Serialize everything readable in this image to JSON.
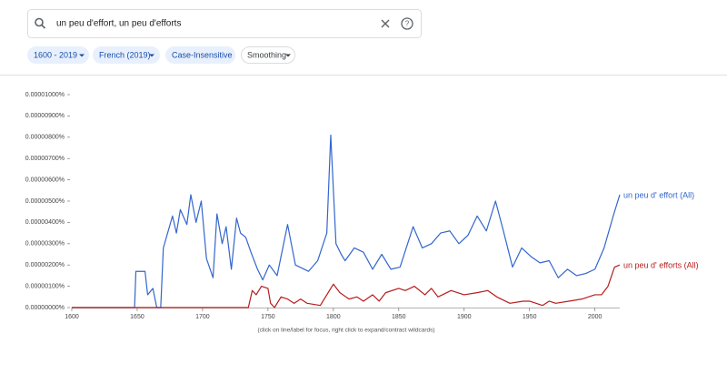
{
  "search": {
    "query": "un peu d'effort, un peu d'efforts"
  },
  "filters": [
    "1600 - 2019",
    "French (2019)",
    "Case-Insensitive",
    "Smoothing"
  ],
  "chart_data": {
    "type": "line",
    "note": "(click on line/label for focus, right click to expand/contract wildcards)",
    "xlim": [
      1600,
      2019
    ],
    "xticks": [
      1600,
      1650,
      1700,
      1750,
      1800,
      1850,
      1900,
      1950,
      2000
    ],
    "ylim": [
      0,
      1e-05
    ],
    "yticks": [
      {
        "value": 0,
        "label": "0.00000000%"
      },
      {
        "value": 1e-06,
        "label": "0.00000100%"
      },
      {
        "value": 2e-06,
        "label": "0.00000200%"
      },
      {
        "value": 3e-06,
        "label": "0.00000300%"
      },
      {
        "value": 4e-06,
        "label": "0.00000400%"
      },
      {
        "value": 5e-06,
        "label": "0.00000500%"
      },
      {
        "value": 6e-06,
        "label": "0.00000600%"
      },
      {
        "value": 7e-06,
        "label": "0.00000700%"
      },
      {
        "value": 8e-06,
        "label": "0.00000800%"
      },
      {
        "value": 9e-06,
        "label": "0.00000900%"
      },
      {
        "value": 1e-05,
        "label": "0.00001000%"
      }
    ],
    "series": [
      {
        "name": "un peu d' effort (All)",
        "color": "#3366cc",
        "x": [
          1600,
          1648,
          1649,
          1656,
          1658,
          1662,
          1665,
          1668,
          1670,
          1677,
          1680,
          1683,
          1688,
          1691,
          1695,
          1699,
          1703,
          1708,
          1711,
          1715,
          1718,
          1722,
          1726,
          1729,
          1733,
          1737,
          1742,
          1746,
          1751,
          1757,
          1762,
          1765,
          1771,
          1781,
          1788,
          1795,
          1798,
          1802,
          1806,
          1809,
          1816,
          1823,
          1830,
          1837,
          1844,
          1851,
          1861,
          1868,
          1875,
          1882,
          1889,
          1896,
          1903,
          1910,
          1917,
          1924,
          1930,
          1937,
          1944,
          1951,
          1958,
          1965,
          1972,
          1979,
          1986,
          1993,
          2000,
          2007,
          2014,
          2019
        ],
        "values": [
          0,
          0,
          1.7e-06,
          1.7e-06,
          6e-07,
          9e-07,
          0,
          0,
          2.8e-06,
          4.3e-06,
          3.5e-06,
          4.6e-06,
          3.9e-06,
          5.3e-06,
          4e-06,
          5e-06,
          2.3e-06,
          1.4e-06,
          4.4e-06,
          3e-06,
          3.8e-06,
          1.8e-06,
          4.2e-06,
          3.5e-06,
          3.3e-06,
          2.6e-06,
          1.8e-06,
          1.3e-06,
          2e-06,
          1.5e-06,
          3e-06,
          3.9e-06,
          2e-06,
          1.7e-06,
          2.2e-06,
          3.5e-06,
          8.1e-06,
          3e-06,
          2.5e-06,
          2.2e-06,
          2.8e-06,
          2.6e-06,
          1.8e-06,
          2.5e-06,
          1.8e-06,
          1.9e-06,
          3.8e-06,
          2.8e-06,
          3e-06,
          3.5e-06,
          3.6e-06,
          3e-06,
          3.4e-06,
          4.3e-06,
          3.6e-06,
          5e-06,
          3.6e-06,
          1.9e-06,
          2.8e-06,
          2.4e-06,
          2.1e-06,
          2.2e-06,
          1.4e-06,
          1.8e-06,
          1.5e-06,
          1.6e-06,
          1.8e-06,
          2.8e-06,
          4.3e-06,
          5.3e-06
        ]
      },
      {
        "name": "un peu d' efforts (All)",
        "color": "#b71c1c",
        "x": [
          1600,
          1735,
          1738,
          1741,
          1745,
          1750,
          1752,
          1755,
          1760,
          1765,
          1770,
          1775,
          1780,
          1790,
          1797,
          1800,
          1805,
          1812,
          1818,
          1823,
          1830,
          1835,
          1840,
          1850,
          1855,
          1862,
          1870,
          1875,
          1880,
          1890,
          1900,
          1910,
          1918,
          1925,
          1935,
          1945,
          1950,
          1960,
          1965,
          1970,
          1980,
          1990,
          2000,
          2005,
          2010,
          2015,
          2019
        ],
        "values": [
          0,
          0,
          8e-07,
          6e-07,
          1e-06,
          9e-07,
          2e-07,
          0,
          5e-07,
          4e-07,
          2e-07,
          4e-07,
          2e-07,
          1e-07,
          8e-07,
          1.1e-06,
          7e-07,
          4e-07,
          5e-07,
          3e-07,
          6e-07,
          3e-07,
          7e-07,
          9e-07,
          8e-07,
          1e-06,
          6e-07,
          9e-07,
          5e-07,
          8e-07,
          6e-07,
          7e-07,
          8e-07,
          5e-07,
          2e-07,
          3e-07,
          3e-07,
          1e-07,
          3e-07,
          2e-07,
          3e-07,
          4e-07,
          6e-07,
          6e-07,
          1e-06,
          1.9e-06,
          2e-06
        ]
      }
    ]
  }
}
